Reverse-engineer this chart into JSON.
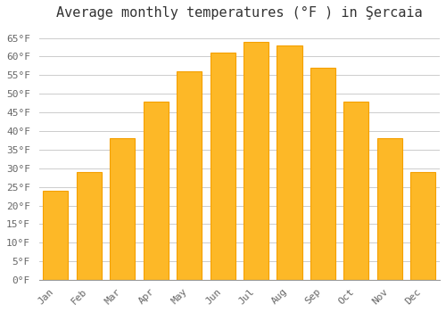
{
  "title": "Average monthly temperatures (°F ) in Şercaia",
  "months": [
    "Jan",
    "Feb",
    "Mar",
    "Apr",
    "May",
    "Jun",
    "Jul",
    "Aug",
    "Sep",
    "Oct",
    "Nov",
    "Dec"
  ],
  "values": [
    24,
    29,
    38,
    48,
    56,
    61,
    64,
    63,
    57,
    48,
    38,
    29
  ],
  "bar_color": "#FDB827",
  "bar_edge_color": "#F5A000",
  "background_color": "#ffffff",
  "grid_color": "#cccccc",
  "ylim": [
    0,
    68
  ],
  "yticks": [
    0,
    5,
    10,
    15,
    20,
    25,
    30,
    35,
    40,
    45,
    50,
    55,
    60,
    65
  ],
  "title_fontsize": 11,
  "tick_fontsize": 8,
  "font_family": "monospace"
}
